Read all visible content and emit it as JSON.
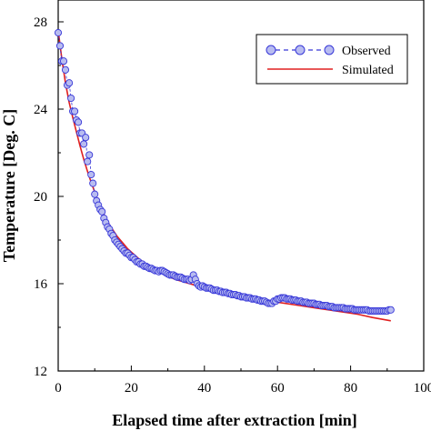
{
  "chart_data": {
    "type": "line",
    "title": "",
    "xlabel": "Elapsed time after extraction [min]",
    "ylabel": "Temperature [Deg. C]",
    "xlim": [
      0,
      100
    ],
    "ylim": [
      12,
      29
    ],
    "x_ticks": [
      "0",
      "20",
      "40",
      "60",
      "80",
      "100"
    ],
    "y_ticks": [
      "12",
      "16",
      "20",
      "24",
      "28"
    ],
    "grid": false,
    "legend_position": "top-right",
    "series": [
      {
        "name": "Observed",
        "style": "markers-dashed",
        "color": "#3838d8",
        "fill": "#b8bcf0",
        "points": [
          [
            0.0,
            27.5
          ],
          [
            0.5,
            26.9
          ],
          [
            1.0,
            26.2
          ],
          [
            1.5,
            26.2
          ],
          [
            2.0,
            25.8
          ],
          [
            2.5,
            25.1
          ],
          [
            3.0,
            25.2
          ],
          [
            3.5,
            24.5
          ],
          [
            4.0,
            23.9
          ],
          [
            4.5,
            23.9
          ],
          [
            5.0,
            23.5
          ],
          [
            5.5,
            23.4
          ],
          [
            6.0,
            22.9
          ],
          [
            6.5,
            22.9
          ],
          [
            7.0,
            22.4
          ],
          [
            7.5,
            22.7
          ],
          [
            8.0,
            21.6
          ],
          [
            8.5,
            21.9
          ],
          [
            9.0,
            21.0
          ],
          [
            9.5,
            20.6
          ],
          [
            10.0,
            20.1
          ],
          [
            10.5,
            19.8
          ],
          [
            11.0,
            19.6
          ],
          [
            11.5,
            19.4
          ],
          [
            12.0,
            19.3
          ],
          [
            12.5,
            19.0
          ],
          [
            13.0,
            18.8
          ],
          [
            13.5,
            18.6
          ],
          [
            14.0,
            18.5
          ],
          [
            14.5,
            18.3
          ],
          [
            15.0,
            18.2
          ],
          [
            15.5,
            18.0
          ],
          [
            16.0,
            17.9
          ],
          [
            16.5,
            17.8
          ],
          [
            17.0,
            17.7
          ],
          [
            17.5,
            17.6
          ],
          [
            18.0,
            17.5
          ],
          [
            18.5,
            17.4
          ],
          [
            19.0,
            17.4
          ],
          [
            19.5,
            17.3
          ],
          [
            20.0,
            17.2
          ],
          [
            20.5,
            17.2
          ],
          [
            21.0,
            17.1
          ],
          [
            21.5,
            17.0
          ],
          [
            22.0,
            17.0
          ],
          [
            22.5,
            16.9
          ],
          [
            23.0,
            16.9
          ],
          [
            23.5,
            16.8
          ],
          [
            24.0,
            16.8
          ],
          [
            24.5,
            16.75
          ],
          [
            25.0,
            16.7
          ],
          [
            25.5,
            16.7
          ],
          [
            26.0,
            16.65
          ],
          [
            26.5,
            16.6
          ],
          [
            27.0,
            16.6
          ],
          [
            27.5,
            16.55
          ],
          [
            28.0,
            16.6
          ],
          [
            28.5,
            16.6
          ],
          [
            29.0,
            16.55
          ],
          [
            29.5,
            16.5
          ],
          [
            30.0,
            16.45
          ],
          [
            30.5,
            16.4
          ],
          [
            31.0,
            16.4
          ],
          [
            31.5,
            16.4
          ],
          [
            32.0,
            16.35
          ],
          [
            32.5,
            16.3
          ],
          [
            33.0,
            16.3
          ],
          [
            33.5,
            16.3
          ],
          [
            34.0,
            16.25
          ],
          [
            34.5,
            16.2
          ],
          [
            35.0,
            16.2
          ],
          [
            35.5,
            16.2
          ],
          [
            36.0,
            16.15
          ],
          [
            36.5,
            16.2
          ],
          [
            37.0,
            16.4
          ],
          [
            37.5,
            16.2
          ],
          [
            38.0,
            16.0
          ],
          [
            38.5,
            15.9
          ],
          [
            39.0,
            15.85
          ],
          [
            39.5,
            15.9
          ],
          [
            40.0,
            15.85
          ],
          [
            40.5,
            15.8
          ],
          [
            41.0,
            15.8
          ],
          [
            41.5,
            15.8
          ],
          [
            42.0,
            15.75
          ],
          [
            42.5,
            15.7
          ],
          [
            43.0,
            15.7
          ],
          [
            43.5,
            15.7
          ],
          [
            44.0,
            15.65
          ],
          [
            44.5,
            15.65
          ],
          [
            45.0,
            15.6
          ],
          [
            45.5,
            15.6
          ],
          [
            46.0,
            15.6
          ],
          [
            46.5,
            15.55
          ],
          [
            47.0,
            15.55
          ],
          [
            47.5,
            15.5
          ],
          [
            48.0,
            15.5
          ],
          [
            48.5,
            15.5
          ],
          [
            49.0,
            15.45
          ],
          [
            49.5,
            15.45
          ],
          [
            50.0,
            15.4
          ],
          [
            50.5,
            15.4
          ],
          [
            51.0,
            15.4
          ],
          [
            51.5,
            15.35
          ],
          [
            52.0,
            15.35
          ],
          [
            52.5,
            15.35
          ],
          [
            53.0,
            15.3
          ],
          [
            53.5,
            15.3
          ],
          [
            54.0,
            15.3
          ],
          [
            54.5,
            15.25
          ],
          [
            55.0,
            15.25
          ],
          [
            55.5,
            15.2
          ],
          [
            56.0,
            15.2
          ],
          [
            56.5,
            15.2
          ],
          [
            57.0,
            15.15
          ],
          [
            57.5,
            15.1
          ],
          [
            58.0,
            15.1
          ],
          [
            58.5,
            15.1
          ],
          [
            59.0,
            15.2
          ],
          [
            59.5,
            15.2
          ],
          [
            60.0,
            15.3
          ],
          [
            60.5,
            15.3
          ],
          [
            61.0,
            15.35
          ],
          [
            61.5,
            15.35
          ],
          [
            62.0,
            15.35
          ],
          [
            62.5,
            15.3
          ],
          [
            63.0,
            15.3
          ],
          [
            63.5,
            15.3
          ],
          [
            64.0,
            15.25
          ],
          [
            64.5,
            15.25
          ],
          [
            65.0,
            15.25
          ],
          [
            65.5,
            15.2
          ],
          [
            66.0,
            15.2
          ],
          [
            66.5,
            15.2
          ],
          [
            67.0,
            15.15
          ],
          [
            67.5,
            15.15
          ],
          [
            68.0,
            15.15
          ],
          [
            68.5,
            15.1
          ],
          [
            69.0,
            15.1
          ],
          [
            69.5,
            15.1
          ],
          [
            70.0,
            15.1
          ],
          [
            70.5,
            15.05
          ],
          [
            71.0,
            15.05
          ],
          [
            71.5,
            15.05
          ],
          [
            72.0,
            15.0
          ],
          [
            72.5,
            15.0
          ],
          [
            73.0,
            15.0
          ],
          [
            73.5,
            15.0
          ],
          [
            74.0,
            14.95
          ],
          [
            74.5,
            14.95
          ],
          [
            75.0,
            14.95
          ],
          [
            75.5,
            14.9
          ],
          [
            76.0,
            14.9
          ],
          [
            76.5,
            14.9
          ],
          [
            77.0,
            14.9
          ],
          [
            77.5,
            14.9
          ],
          [
            78.0,
            14.9
          ],
          [
            78.5,
            14.85
          ],
          [
            79.0,
            14.85
          ],
          [
            79.5,
            14.85
          ],
          [
            80.0,
            14.85
          ],
          [
            80.5,
            14.85
          ],
          [
            81.0,
            14.8
          ],
          [
            81.5,
            14.8
          ],
          [
            82.0,
            14.8
          ],
          [
            82.5,
            14.8
          ],
          [
            83.0,
            14.8
          ],
          [
            83.5,
            14.8
          ],
          [
            84.0,
            14.8
          ],
          [
            84.5,
            14.8
          ],
          [
            85.0,
            14.75
          ],
          [
            85.5,
            14.75
          ],
          [
            86.0,
            14.75
          ],
          [
            86.5,
            14.75
          ],
          [
            87.0,
            14.75
          ],
          [
            87.5,
            14.75
          ],
          [
            88.0,
            14.75
          ],
          [
            88.5,
            14.75
          ],
          [
            89.0,
            14.75
          ],
          [
            89.5,
            14.75
          ],
          [
            90.0,
            14.75
          ],
          [
            90.5,
            14.8
          ],
          [
            91.0,
            14.8
          ]
        ]
      },
      {
        "name": "Simulated",
        "style": "line",
        "color": "#e02020",
        "points": [
          [
            0,
            27.6
          ],
          [
            1,
            26.3
          ],
          [
            2,
            25.2
          ],
          [
            3,
            24.3
          ],
          [
            4,
            23.6
          ],
          [
            5,
            22.95
          ],
          [
            6,
            22.3
          ],
          [
            7,
            21.7
          ],
          [
            8,
            21.15
          ],
          [
            9,
            20.65
          ],
          [
            10,
            20.2
          ],
          [
            11,
            19.75
          ],
          [
            12,
            19.35
          ],
          [
            13,
            19.0
          ],
          [
            14,
            18.7
          ],
          [
            15,
            18.45
          ],
          [
            16,
            18.2
          ],
          [
            17,
            18.0
          ],
          [
            18,
            17.8
          ],
          [
            19,
            17.6
          ],
          [
            20,
            17.45
          ],
          [
            22,
            17.15
          ],
          [
            24,
            16.9
          ],
          [
            26,
            16.7
          ],
          [
            28,
            16.5
          ],
          [
            30,
            16.35
          ],
          [
            32,
            16.2
          ],
          [
            34,
            16.1
          ],
          [
            36,
            16.0
          ],
          [
            38,
            15.9
          ],
          [
            40,
            15.8
          ],
          [
            43,
            15.7
          ],
          [
            46,
            15.55
          ],
          [
            50,
            15.45
          ],
          [
            54,
            15.3
          ],
          [
            58,
            15.2
          ],
          [
            62,
            15.1
          ],
          [
            66,
            15.0
          ],
          [
            70,
            14.9
          ],
          [
            74,
            14.8
          ],
          [
            78,
            14.7
          ],
          [
            82,
            14.6
          ],
          [
            86,
            14.45
          ],
          [
            91,
            14.3
          ]
        ]
      }
    ]
  }
}
